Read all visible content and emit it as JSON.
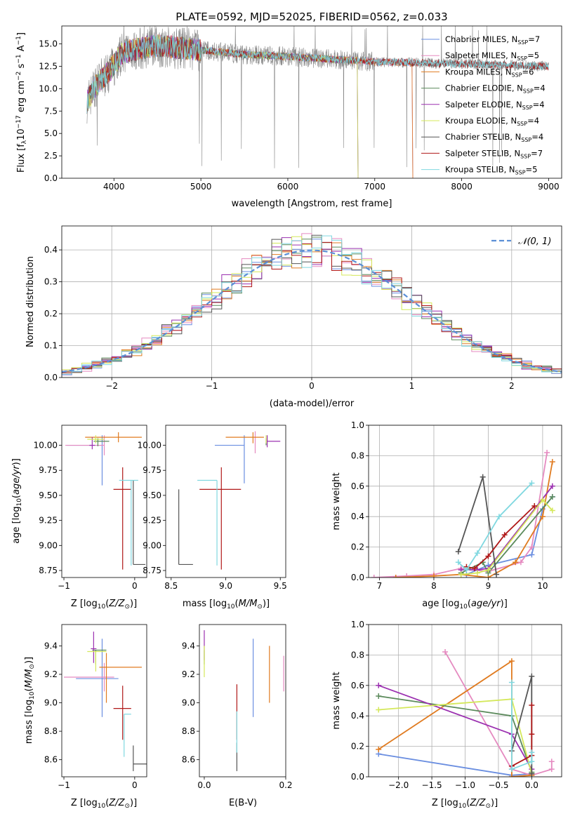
{
  "figure": {
    "title": "PLATE=0592, MJD=52025, FIBERID=0562, z=0.033"
  },
  "palette": {
    "chabrier_miles": "#6a8ee0",
    "salpeter_miles": "#e58ac0",
    "kroupa_miles": "#e07b20",
    "chabrier_elodie": "#5b8a5b",
    "salpeter_elodie": "#9b30b0",
    "kroupa_elodie": "#d4e85a",
    "chabrier_stelib": "#555555",
    "salpeter_stelib": "#b01818",
    "kroupa_stelib": "#80d8e0",
    "data_spectrum": "#888888",
    "normal_curve": "#5b8fd6"
  },
  "chart_data": [
    {
      "id": "spectrum",
      "type": "line",
      "xlabel": "wavelength [Angstrom, rest frame]",
      "ylabel": "Flux [f_λ10^-17 erg cm^-2 s^-1 A^-1]",
      "xlim": [
        3400,
        9150
      ],
      "ylim": [
        0,
        17
      ],
      "xticks": [
        4000,
        5000,
        6000,
        7000,
        8000,
        9000
      ],
      "yticks": [
        0.0,
        2.5,
        5.0,
        7.5,
        10.0,
        12.5,
        15.0
      ],
      "grid": false,
      "legend_position": "top-right",
      "legend": [
        "Chabrier MILES, N_SSP=7",
        "Salpeter MILES, N_SSP=5",
        "Kroupa MILES, N_SSP=6",
        "Chabrier ELODIE, N_SSP=4",
        "Salpeter ELODIE, N_SSP=4",
        "Kroupa ELODIE, N_SSP=4",
        "Chabrier STELIB, N_SSP=4",
        "Salpeter STELIB, N_SSP=7",
        "Kroupa STELIB, N_SSP=5"
      ],
      "data_trend": {
        "x": [
          3690,
          3800,
          3950,
          4100,
          4300,
          4500,
          4800,
          5100,
          5500,
          6000,
          6500,
          7000,
          7400,
          7800,
          8200,
          8600,
          9000
        ],
        "y": [
          8.5,
          10.5,
          12.0,
          14.0,
          14.5,
          14.8,
          14.5,
          14.2,
          13.8,
          13.6,
          13.3,
          13.0,
          12.9,
          12.8,
          12.7,
          12.6,
          12.5
        ]
      },
      "model_ranges": [
        {
          "series": "Chabrier MILES",
          "xmax": 7430
        },
        {
          "series": "Salpeter MILES",
          "xmax": 7430
        },
        {
          "series": "Kroupa MILES",
          "xmax": 7430
        },
        {
          "series": "Chabrier ELODIE",
          "xmax": 6800
        },
        {
          "series": "Salpeter ELODIE",
          "xmax": 6800
        },
        {
          "series": "Kroupa ELODIE",
          "xmax": 6800
        },
        {
          "series": "Chabrier STELIB",
          "xmax": 9000
        },
        {
          "series": "Salpeter STELIB",
          "xmax": 9000
        },
        {
          "series": "Kroupa STELIB",
          "xmax": 9000
        }
      ]
    },
    {
      "id": "residuals",
      "type": "line",
      "xlabel": "(data-model)/error",
      "ylabel": "Normed distribution",
      "xlim": [
        -2.5,
        2.5
      ],
      "ylim": [
        0,
        0.475
      ],
      "xticks": [
        -2,
        -1,
        0,
        1,
        2
      ],
      "yticks": [
        0.0,
        0.1,
        0.2,
        0.3,
        0.4
      ],
      "grid": true,
      "legend_position": "top-right",
      "legend": [
        "𝒩(0, 1)"
      ],
      "bin_width": 0.1,
      "bin_start": -2.5
    },
    {
      "id": "age_vs_Z",
      "type": "scatter",
      "xlabel": "Z [log10(Z/Z⊙)]",
      "ylabel": "age [log10(age/yr)]",
      "xlim": [
        -1.03,
        0.17
      ],
      "ylim": [
        8.68,
        10.2
      ],
      "xticks": [
        -1,
        0
      ],
      "yticks": [
        8.75,
        9.0,
        9.25,
        9.5,
        9.75,
        10.0
      ],
      "points": [
        {
          "series": "Chabrier MILES",
          "x": -0.46,
          "y": 10.0,
          "xerr": [
            0.5,
            0.0
          ],
          "yerr": [
            0.4,
            0.1
          ]
        },
        {
          "series": "Salpeter MILES",
          "x": -0.43,
          "y": 10.0,
          "xerr": [
            0.55,
            0.0
          ],
          "yerr": [
            0.1,
            0.1
          ]
        },
        {
          "series": "Kroupa MILES",
          "x": -0.23,
          "y": 10.08,
          "xerr": [
            0.47,
            0.33
          ],
          "yerr": [
            0.05,
            0.05
          ]
        },
        {
          "series": "Chabrier ELODIE",
          "x": -0.52,
          "y": 10.04,
          "xerr": [
            0.06,
            0.16
          ],
          "yerr": [
            0.05,
            0.03
          ]
        },
        {
          "series": "Salpeter ELODIE",
          "x": -0.6,
          "y": 10.0,
          "xerr": [
            0.04,
            0.04
          ],
          "yerr": [
            0.04,
            0.08
          ]
        },
        {
          "series": "Kroupa ELODIE",
          "x": -0.55,
          "y": 10.06,
          "xerr": [
            0.12,
            0.12
          ],
          "yerr": [
            0.04,
            0.04
          ]
        },
        {
          "series": "Chabrier STELIB",
          "x": -0.02,
          "y": 8.81,
          "xerr": [
            0.0,
            0.17
          ],
          "yerr": [
            0.0,
            0.84
          ]
        },
        {
          "series": "Salpeter STELIB",
          "x": -0.17,
          "y": 9.56,
          "xerr": [
            0.13,
            0.12
          ],
          "yerr": [
            0.8,
            0.22
          ]
        },
        {
          "series": "Kroupa STELIB",
          "x": -0.05,
          "y": 9.65,
          "xerr": [
            0.17,
            0.1
          ],
          "yerr": [
            0.85,
            0.0
          ]
        }
      ]
    },
    {
      "id": "age_vs_mass",
      "type": "scatter",
      "xlabel": "mass [log10(M/M⊙)]",
      "ylabel": "",
      "xlim": [
        8.45,
        9.55
      ],
      "ylim": [
        8.68,
        10.2
      ],
      "xticks": [
        8.5,
        9.0,
        9.5
      ],
      "yticks": [
        8.75,
        9.0,
        9.25,
        9.5,
        9.75,
        10.0
      ],
      "points": [
        {
          "series": "Chabrier MILES",
          "x": 9.17,
          "y": 10.0,
          "xerr": [
            0.27,
            0.0
          ],
          "yerr": [
            0.38,
            0.1
          ]
        },
        {
          "series": "Salpeter MILES",
          "x": 9.27,
          "y": 10.04,
          "xerr": [
            0.0,
            0.0
          ],
          "yerr": [
            0.12,
            0.1
          ]
        },
        {
          "series": "Kroupa MILES",
          "x": 9.25,
          "y": 10.08,
          "xerr": [
            0.25,
            0.1
          ],
          "yerr": [
            0.06,
            0.05
          ]
        },
        {
          "series": "Chabrier ELODIE",
          "x": 9.37,
          "y": 10.04,
          "xerr": [
            0.0,
            0.0
          ],
          "yerr": [
            0.04,
            0.03
          ]
        },
        {
          "series": "Salpeter ELODIE",
          "x": 9.38,
          "y": 10.04,
          "xerr": [
            0.0,
            0.12
          ],
          "yerr": [
            0.06,
            0.06
          ]
        },
        {
          "series": "Kroupa ELODIE",
          "x": 9.37,
          "y": 10.06,
          "xerr": [
            0.0,
            0.0
          ],
          "yerr": [
            0.04,
            0.04
          ]
        },
        {
          "series": "Chabrier STELIB",
          "x": 8.57,
          "y": 8.81,
          "xerr": [
            0.0,
            0.13
          ],
          "yerr": [
            0.0,
            0.75
          ]
        },
        {
          "series": "Salpeter STELIB",
          "x": 8.96,
          "y": 9.56,
          "xerr": [
            0.2,
            0.18
          ],
          "yerr": [
            0.8,
            0.22
          ]
        },
        {
          "series": "Kroupa STELIB",
          "x": 8.92,
          "y": 9.65,
          "xerr": [
            0.18,
            0.0
          ],
          "yerr": [
            0.85,
            0.0
          ]
        }
      ]
    },
    {
      "id": "massweight_vs_age",
      "type": "line",
      "xlabel": "age [log10(age/yr)]",
      "ylabel": "mass weight",
      "xlim": [
        6.8,
        10.35
      ],
      "ylim": [
        0,
        1
      ],
      "xticks": [
        7,
        8,
        9,
        10
      ],
      "yticks": [
        0.0,
        0.2,
        0.4,
        0.6,
        0.8,
        1.0
      ],
      "grid": true,
      "series": [
        {
          "name": "Chabrier MILES",
          "x": [
            8.6,
            8.8,
            9.0,
            9.8,
            10.0,
            10.18
          ],
          "y": [
            0.02,
            0.05,
            0.08,
            0.15,
            0.45,
            0.53
          ]
        },
        {
          "name": "Salpeter MILES",
          "x": [
            6.9,
            7.5,
            8.0,
            8.5,
            9.0,
            9.6,
            9.8,
            10.08
          ],
          "y": [
            0.0,
            0.01,
            0.02,
            0.06,
            0.04,
            0.1,
            0.2,
            0.82
          ]
        },
        {
          "name": "Kroupa MILES",
          "x": [
            7.3,
            8.0,
            8.5,
            9.0,
            9.5,
            10.0,
            10.18
          ],
          "y": [
            0.0,
            0.01,
            0.02,
            0.0,
            0.1,
            0.4,
            0.76
          ]
        },
        {
          "name": "Chabrier ELODIE",
          "x": [
            8.5,
            8.9,
            9.0,
            10.18
          ],
          "y": [
            0.03,
            0.1,
            0.03,
            0.53
          ]
        },
        {
          "name": "Salpeter ELODIE",
          "x": [
            8.5,
            8.8,
            9.0,
            10.18
          ],
          "y": [
            0.05,
            0.05,
            0.06,
            0.6
          ]
        },
        {
          "name": "Kroupa ELODIE",
          "x": [
            8.5,
            8.8,
            9.0,
            10.0,
            10.18
          ],
          "y": [
            0.02,
            0.03,
            0.05,
            0.51,
            0.44
          ]
        },
        {
          "name": "Chabrier STELIB",
          "x": [
            8.45,
            8.9,
            9.15
          ],
          "y": [
            0.17,
            0.66,
            0.02
          ]
        },
        {
          "name": "Salpeter STELIB",
          "x": [
            8.6,
            8.75,
            9.0,
            9.3,
            9.85
          ],
          "y": [
            0.07,
            0.06,
            0.14,
            0.28,
            0.47
          ]
        },
        {
          "name": "Kroupa STELIB",
          "x": [
            8.45,
            8.6,
            8.8,
            9.2,
            9.8
          ],
          "y": [
            0.1,
            0.05,
            0.16,
            0.4,
            0.62
          ]
        }
      ]
    },
    {
      "id": "mass_vs_Z",
      "type": "scatter",
      "xlabel": "Z [log10(Z/Z⊙)]",
      "ylabel": "mass [log10(M/M⊙)]",
      "xlim": [
        -1.03,
        0.17
      ],
      "ylim": [
        8.48,
        9.55
      ],
      "xticks": [
        -1,
        0
      ],
      "yticks": [
        8.6,
        8.8,
        9.0,
        9.2,
        9.4
      ],
      "points": [
        {
          "series": "Chabrier MILES",
          "x": -0.46,
          "y": 9.17,
          "xerr": [
            0.37,
            0.23
          ],
          "yerr": [
            0.27,
            0.28
          ]
        },
        {
          "series": "Salpeter MILES",
          "x": -0.43,
          "y": 9.18,
          "xerr": [
            0.57,
            0.14
          ],
          "yerr": [
            0.1,
            0.1
          ]
        },
        {
          "series": "Kroupa MILES",
          "x": -0.4,
          "y": 9.25,
          "xerr": [
            0.1,
            0.5
          ],
          "yerr": [
            0.25,
            0.1
          ]
        },
        {
          "series": "Chabrier ELODIE",
          "x": -0.55,
          "y": 9.37,
          "xerr": [
            0.05,
            0.15
          ],
          "yerr": [
            0.1,
            0.0
          ]
        },
        {
          "series": "Salpeter ELODIE",
          "x": -0.58,
          "y": 9.38,
          "xerr": [
            0.04,
            0.04
          ],
          "yerr": [
            0.1,
            0.12
          ]
        },
        {
          "series": "Kroupa ELODIE",
          "x": -0.55,
          "y": 9.36,
          "xerr": [
            0.12,
            0.15
          ],
          "yerr": [
            0.14,
            0.0
          ]
        },
        {
          "series": "Chabrier STELIB",
          "x": -0.02,
          "y": 8.57,
          "xerr": [
            0.0,
            0.2
          ],
          "yerr": [
            0.05,
            0.13
          ]
        },
        {
          "series": "Salpeter STELIB",
          "x": -0.17,
          "y": 8.96,
          "xerr": [
            0.13,
            0.12
          ],
          "yerr": [
            0.22,
            0.16
          ]
        },
        {
          "series": "Kroupa STELIB",
          "x": -0.15,
          "y": 8.92,
          "xerr": [
            0.0,
            0.1
          ],
          "yerr": [
            0.3,
            0.0
          ]
        }
      ]
    },
    {
      "id": "mass_vs_EBV",
      "type": "scatter",
      "xlabel": "E(B-V)",
      "ylabel": "",
      "xlim": [
        -0.012,
        0.2
      ],
      "ylim": [
        8.48,
        9.55
      ],
      "xticks": [
        0.0,
        0.2
      ],
      "yticks": [
        8.6,
        8.8,
        9.0,
        9.2,
        9.4
      ],
      "points": [
        {
          "series": "Chabrier MILES",
          "x": 0.12,
          "y": 9.17,
          "yerr": [
            0.27,
            0.28
          ]
        },
        {
          "series": "Salpeter MILES",
          "x": 0.195,
          "y": 9.2,
          "yerr": [
            0.12,
            0.13
          ]
        },
        {
          "series": "Kroupa MILES",
          "x": 0.16,
          "y": 9.2,
          "yerr": [
            0.2,
            0.2
          ]
        },
        {
          "series": "Chabrier ELODIE",
          "x": 0.0,
          "y": 9.37,
          "yerr": [
            0.1,
            0.0
          ]
        },
        {
          "series": "Salpeter ELODIE",
          "x": 0.0,
          "y": 9.4,
          "yerr": [
            0.1,
            0.11
          ]
        },
        {
          "series": "Kroupa ELODIE",
          "x": 0.0,
          "y": 9.3,
          "yerr": [
            0.12,
            0.1
          ]
        },
        {
          "series": "Chabrier STELIB",
          "x": 0.08,
          "y": 8.62,
          "yerr": [
            0.1,
            0.1
          ]
        },
        {
          "series": "Salpeter STELIB",
          "x": 0.08,
          "y": 8.96,
          "yerr": [
            0.22,
            0.17
          ]
        },
        {
          "series": "Kroupa STELIB",
          "x": 0.08,
          "y": 8.8,
          "yerr": [
            0.15,
            0.14
          ]
        }
      ]
    },
    {
      "id": "massweight_vs_Z",
      "type": "line",
      "xlabel": "Z [log10(Z/Z⊙)]",
      "ylabel": "mass weight",
      "xlim": [
        -2.45,
        0.45
      ],
      "ylim": [
        0,
        1
      ],
      "xticks": [
        -2.0,
        -1.5,
        -1.0,
        -0.5,
        0.0
      ],
      "yticks": [
        0.0,
        0.2,
        0.4,
        0.6,
        0.8,
        1.0
      ],
      "grid": true,
      "series": [
        {
          "name": "Chabrier MILES",
          "x": [
            -2.3,
            -0.3,
            0.0
          ],
          "y": [
            0.15,
            0.01,
            0.02
          ]
        },
        {
          "name": "Salpeter MILES",
          "x": [
            -1.3,
            -0.3,
            0.0,
            0.3,
            0.3
          ],
          "y": [
            0.82,
            0.05,
            0.01,
            0.05,
            0.1
          ]
        },
        {
          "name": "Kroupa MILES",
          "x": [
            -2.3,
            -0.3,
            -0.3,
            0.0
          ],
          "y": [
            0.18,
            0.76,
            0.0,
            0.01
          ]
        },
        {
          "name": "Chabrier ELODIE",
          "x": [
            -2.3,
            -0.3,
            0.0
          ],
          "y": [
            0.53,
            0.4,
            0.03
          ]
        },
        {
          "name": "Salpeter ELODIE",
          "x": [
            -2.3,
            -0.3,
            0.0
          ],
          "y": [
            0.6,
            0.28,
            0.05
          ]
        },
        {
          "name": "Kroupa ELODIE",
          "x": [
            -2.3,
            -0.3,
            0.0
          ],
          "y": [
            0.44,
            0.51,
            0.02
          ]
        },
        {
          "name": "Chabrier STELIB",
          "x": [
            -0.3,
            0.0,
            0.0
          ],
          "y": [
            0.17,
            0.66,
            0.02
          ]
        },
        {
          "name": "Salpeter STELIB",
          "x": [
            -0.3,
            0.0,
            0.0,
            0.0
          ],
          "y": [
            0.07,
            0.14,
            0.28,
            0.47
          ]
        },
        {
          "name": "Kroupa STELIB",
          "x": [
            -0.3,
            -0.3,
            0.0,
            0.0
          ],
          "y": [
            0.62,
            0.05,
            0.1,
            0.16
          ]
        }
      ]
    }
  ]
}
